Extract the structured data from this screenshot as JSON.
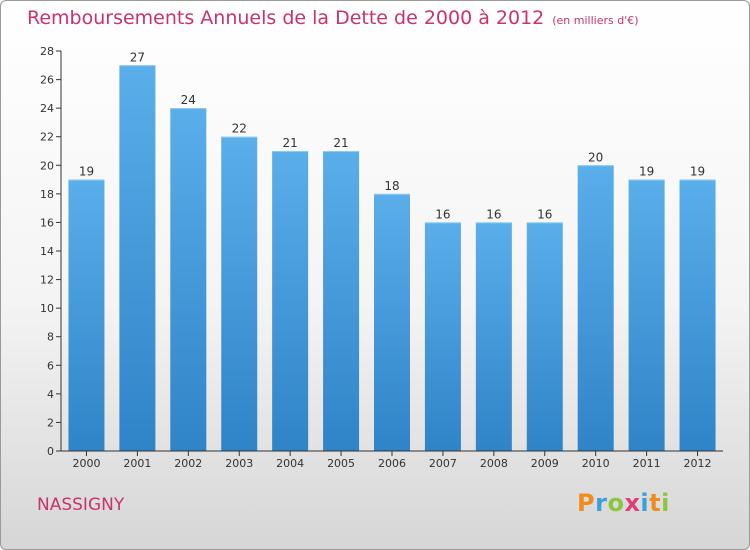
{
  "title": "Remboursements Annuels de la Dette de 2000 à 2012",
  "unit_note": "(en milliers d'€)",
  "commune": "NASSIGNY",
  "brand": {
    "letters": [
      "P",
      "r",
      "o",
      "x",
      "i",
      "t",
      "i"
    ],
    "colors": [
      "#f08c1e",
      "#3aa0dc",
      "#8cc63e",
      "#e43c78",
      "#3aa0dc",
      "#f08c1e",
      "#8cc63e"
    ]
  },
  "colors": {
    "bar": "#5aaeea",
    "bar_dark": "#2f84c8",
    "title": "#c8326e",
    "axis": "#333333"
  },
  "chart_data": {
    "type": "bar",
    "title": "Remboursements Annuels de la Dette de 2000 à 2012",
    "categories": [
      "2000",
      "2001",
      "2002",
      "2003",
      "2004",
      "2005",
      "2006",
      "2007",
      "2008",
      "2009",
      "2010",
      "2011",
      "2012"
    ],
    "values": [
      19,
      27,
      24,
      22,
      21,
      21,
      18,
      16,
      16,
      16,
      20,
      19,
      19
    ],
    "ylim": [
      0,
      28
    ],
    "yticks": [
      0,
      2,
      4,
      6,
      8,
      10,
      12,
      14,
      16,
      18,
      20,
      22,
      24,
      26,
      28
    ],
    "grid": false,
    "data_labels": true
  }
}
